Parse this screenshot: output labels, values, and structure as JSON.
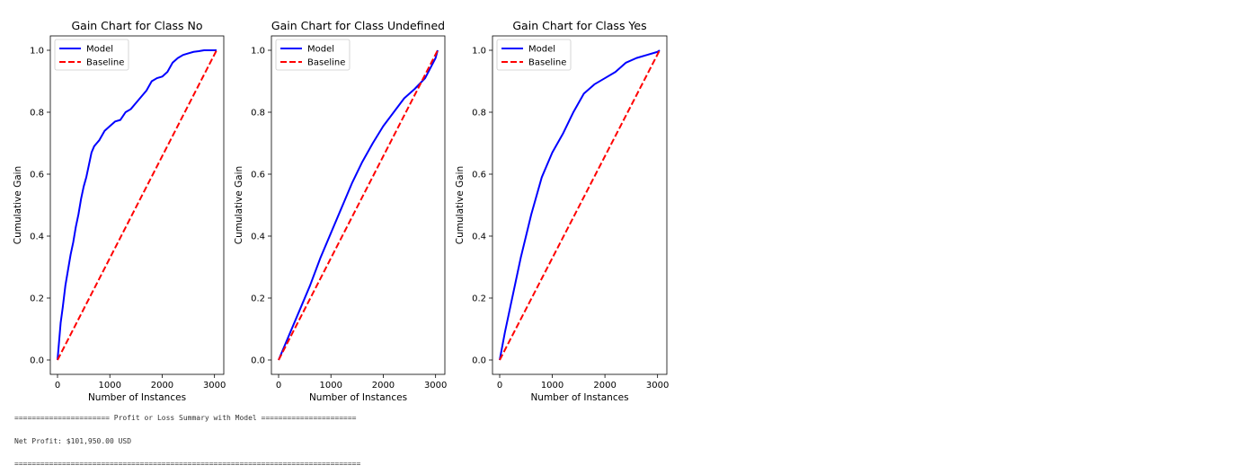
{
  "chart_data": [
    {
      "type": "line",
      "title": "Gain Chart for Class No",
      "xlabel": "Number of Instances",
      "ylabel": "Cumulative Gain",
      "xlim": [
        0,
        3040
      ],
      "ylim": [
        0,
        1.0
      ],
      "xticks": [
        0,
        1000,
        2000,
        3000
      ],
      "yticks": [
        0.0,
        0.2,
        0.4,
        0.6,
        0.8,
        1.0
      ],
      "xtick_labels": [
        "0",
        "1000",
        "2000",
        "3000"
      ],
      "ytick_labels": [
        "0.0",
        "0.2",
        "0.4",
        "0.6",
        "0.8",
        "1.0"
      ],
      "legend_position": "top-left",
      "grid": false,
      "series": [
        {
          "name": "Model",
          "style": "solid",
          "color": "#0000ff",
          "x": [
            0,
            30,
            60,
            100,
            150,
            200,
            250,
            300,
            350,
            400,
            450,
            500,
            550,
            600,
            650,
            700,
            750,
            800,
            900,
            1000,
            1100,
            1200,
            1300,
            1400,
            1500,
            1600,
            1700,
            1800,
            1900,
            2000,
            2100,
            2200,
            2300,
            2400,
            2500,
            2600,
            2700,
            2800,
            2900,
            3000,
            3040
          ],
          "y": [
            0.0,
            0.06,
            0.12,
            0.17,
            0.24,
            0.29,
            0.34,
            0.38,
            0.43,
            0.47,
            0.52,
            0.56,
            0.59,
            0.63,
            0.67,
            0.69,
            0.7,
            0.71,
            0.74,
            0.755,
            0.77,
            0.775,
            0.8,
            0.81,
            0.83,
            0.85,
            0.87,
            0.9,
            0.91,
            0.915,
            0.93,
            0.96,
            0.975,
            0.985,
            0.99,
            0.995,
            0.997,
            1.0,
            1.0,
            1.0,
            1.0
          ]
        },
        {
          "name": "Baseline",
          "style": "dashed",
          "color": "#ff0000",
          "x": [
            0,
            3040
          ],
          "y": [
            0.0,
            1.0
          ]
        }
      ]
    },
    {
      "type": "line",
      "title": "Gain Chart for Class Undefined",
      "xlabel": "Number of Instances",
      "ylabel": "Cumulative Gain",
      "xlim": [
        0,
        3040
      ],
      "ylim": [
        0,
        1.0
      ],
      "xticks": [
        0,
        1000,
        2000,
        3000
      ],
      "yticks": [
        0.0,
        0.2,
        0.4,
        0.6,
        0.8,
        1.0
      ],
      "xtick_labels": [
        "0",
        "1000",
        "2000",
        "3000"
      ],
      "ytick_labels": [
        "0.0",
        "0.2",
        "0.4",
        "0.6",
        "0.8",
        "1.0"
      ],
      "legend_position": "top-left",
      "grid": false,
      "series": [
        {
          "name": "Model",
          "style": "solid",
          "color": "#0000ff",
          "x": [
            0,
            200,
            400,
            600,
            800,
            1000,
            1200,
            1400,
            1600,
            1800,
            2000,
            2200,
            2400,
            2600,
            2800,
            3000,
            3040
          ],
          "y": [
            0.0,
            0.08,
            0.16,
            0.24,
            0.33,
            0.41,
            0.49,
            0.57,
            0.64,
            0.7,
            0.755,
            0.8,
            0.845,
            0.875,
            0.91,
            0.975,
            1.0
          ]
        },
        {
          "name": "Baseline",
          "style": "dashed",
          "color": "#ff0000",
          "x": [
            0,
            3040
          ],
          "y": [
            0.0,
            1.0
          ]
        }
      ]
    },
    {
      "type": "line",
      "title": "Gain Chart for Class Yes",
      "xlabel": "Number of Instances",
      "ylabel": "Cumulative Gain",
      "xlim": [
        0,
        3040
      ],
      "ylim": [
        0,
        1.0
      ],
      "xticks": [
        0,
        1000,
        2000,
        3000
      ],
      "yticks": [
        0.0,
        0.2,
        0.4,
        0.6,
        0.8,
        1.0
      ],
      "xtick_labels": [
        "0",
        "1000",
        "2000",
        "3000"
      ],
      "ytick_labels": [
        "0.0",
        "0.2",
        "0.4",
        "0.6",
        "0.8",
        "1.0"
      ],
      "legend_position": "top-left",
      "grid": false,
      "series": [
        {
          "name": "Model",
          "style": "solid",
          "color": "#0000ff",
          "x": [
            0,
            100,
            200,
            300,
            400,
            500,
            600,
            700,
            800,
            900,
            1000,
            1200,
            1400,
            1600,
            1800,
            2000,
            2200,
            2400,
            2600,
            2800,
            3000,
            3040
          ],
          "y": [
            0.0,
            0.09,
            0.17,
            0.25,
            0.33,
            0.4,
            0.47,
            0.53,
            0.59,
            0.63,
            0.67,
            0.73,
            0.8,
            0.86,
            0.89,
            0.91,
            0.93,
            0.96,
            0.975,
            0.985,
            0.995,
            1.0
          ]
        },
        {
          "name": "Baseline",
          "style": "dashed",
          "color": "#ff0000",
          "x": [
            0,
            3040
          ],
          "y": [
            0.0,
            1.0
          ]
        }
      ]
    }
  ],
  "console": {
    "line1": "====================== Profit or Loss Summary with Model ======================",
    "line2": "Net Profit: $101,950.00 USD",
    "line3": "================================================================================"
  }
}
